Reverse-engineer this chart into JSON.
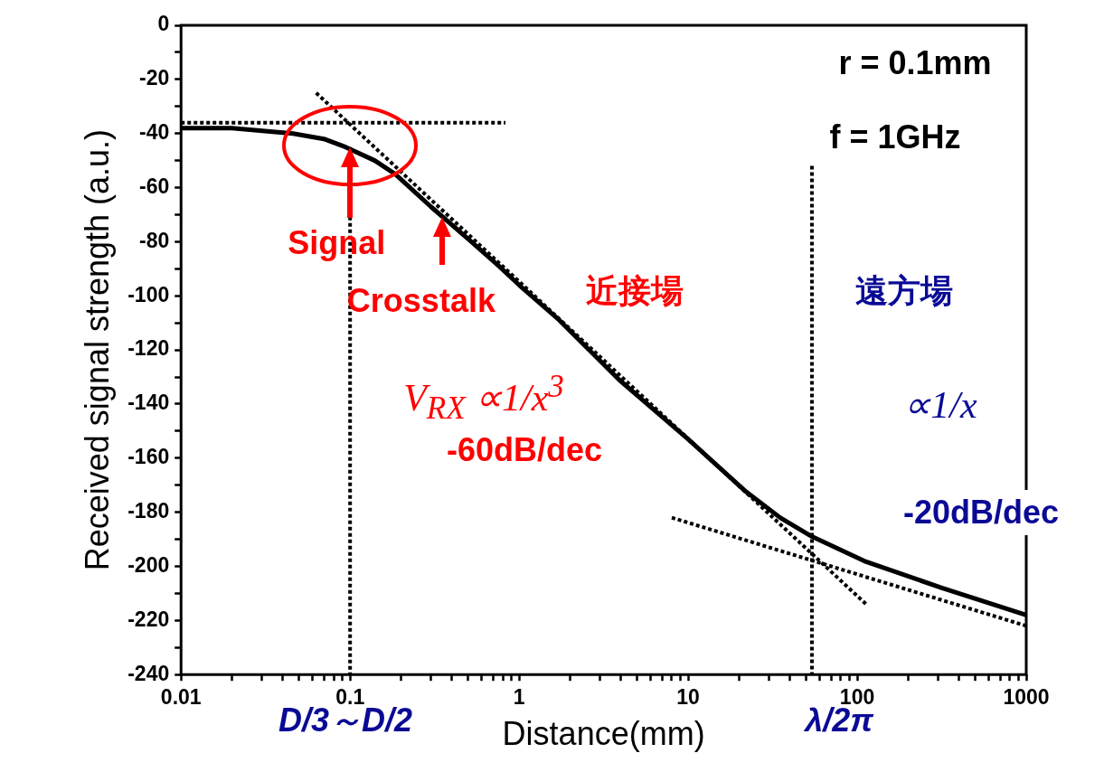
{
  "chart_data": {
    "type": "line",
    "xlabel": "Distance(mm)",
    "ylabel": "Received signal strength (a.u.)",
    "log": "x",
    "xlim": [
      0.01,
      1000
    ],
    "ylim": [
      -240,
      0
    ],
    "xticks": [
      0.01,
      {
        "value": 0.02,
        "label": null
      },
      {
        "value": 0.03,
        "label": null
      },
      {
        "value": 0.04,
        "label": null
      },
      {
        "value": 0.05,
        "label": null
      },
      {
        "value": 0.06,
        "label": null
      },
      {
        "value": 0.07,
        "label": null
      },
      {
        "value": 0.08,
        "label": null
      },
      {
        "value": 0.09,
        "label": null
      },
      0.1,
      {
        "value": 0.2,
        "label": null
      },
      {
        "value": 0.3,
        "label": null
      },
      {
        "value": 0.4,
        "label": null
      },
      {
        "value": 0.5,
        "label": null
      },
      {
        "value": 0.6,
        "label": null
      },
      {
        "value": 0.7,
        "label": null
      },
      {
        "value": 0.8,
        "label": null
      },
      {
        "value": 0.9,
        "label": null
      },
      1,
      {
        "value": 2,
        "label": null
      },
      {
        "value": 3,
        "label": null
      },
      {
        "value": 4,
        "label": null
      },
      {
        "value": 5,
        "label": null
      },
      {
        "value": 6,
        "label": null
      },
      {
        "value": 7,
        "label": null
      },
      {
        "value": 8,
        "label": null
      },
      {
        "value": 9,
        "label": null
      },
      10,
      {
        "value": 20,
        "label": null
      },
      {
        "value": 30,
        "label": null
      },
      {
        "value": 40,
        "label": null
      },
      {
        "value": 50,
        "label": null
      },
      {
        "value": 60,
        "label": null
      },
      {
        "value": 70,
        "label": null
      },
      {
        "value": 80,
        "label": null
      },
      {
        "value": 90,
        "label": null
      },
      100,
      {
        "value": 200,
        "label": null
      },
      {
        "value": 300,
        "label": null
      },
      {
        "value": 400,
        "label": null
      },
      {
        "value": 500,
        "label": null
      },
      {
        "value": 600,
        "label": null
      },
      {
        "value": 700,
        "label": null
      },
      {
        "value": 800,
        "label": null
      },
      {
        "value": 900,
        "label": null
      },
      1000
    ],
    "yticks": [
      -240,
      {
        "value": -230,
        "label": null
      },
      -220,
      {
        "value": -210,
        "label": null
      },
      -200,
      {
        "value": -190,
        "label": null
      },
      -180,
      {
        "value": -170,
        "label": null
      },
      -160,
      {
        "value": -150,
        "label": null
      },
      -140,
      {
        "value": -130,
        "label": null
      },
      -120,
      {
        "value": -110,
        "label": null
      },
      -100,
      {
        "value": -90,
        "label": null
      },
      -80,
      {
        "value": -70,
        "label": null
      },
      -60,
      {
        "value": -50,
        "label": null
      },
      -40,
      {
        "value": -30,
        "label": null
      },
      -20,
      {
        "value": -10,
        "label": null
      },
      0
    ],
    "grid": false,
    "legend": false,
    "marker": "none",
    "series": [
      {
        "color": "#000000",
        "line_style": "solid",
        "x": [
          0.01,
          0.02,
          0.046,
          0.07,
          0.094,
          0.14,
          0.185,
          0.3,
          0.5,
          0.76,
          1,
          1.73,
          3.9,
          10,
          21.6,
          35,
          54,
          110,
          317,
          1000
        ],
        "values": [
          -38,
          -38,
          -40,
          -42,
          -45,
          -50,
          -55,
          -67,
          -79,
          -89,
          -96,
          -109,
          -131,
          -153,
          -172,
          -182,
          -189,
          -198,
          -208,
          -218
        ]
      },
      {
        "color": "#000000",
        "line_style": "dotted",
        "x": [
          0.01,
          0.83
        ],
        "values": [
          -36,
          -36
        ]
      },
      {
        "color": "#000000",
        "line_style": "dotted",
        "x": [
          0.063,
          113
        ],
        "values": [
          -25,
          -214
        ]
      },
      {
        "color": "#000000",
        "line_style": "dotted",
        "x": [
          8,
          1000
        ],
        "values": [
          -182,
          -222
        ]
      },
      {
        "color": "#000000",
        "line_style": "dotted",
        "x": [
          0.1,
          0.1
        ],
        "values": [
          -45,
          -240
        ]
      },
      {
        "color": "#000000",
        "line_style": "dotted",
        "x": [
          54,
          54
        ],
        "values": [
          -52,
          -240
        ]
      }
    ],
    "annotations": [
      "r = 0.1mm",
      "f = 1GHz",
      {
        "text": "Signal",
        "x": 0.1,
        "y": -45
      },
      {
        "text": "Crosstalk",
        "x": 0.35,
        "y": -71
      },
      "近接場",
      "遠方場",
      "V$_{RX}$ ∝1/x$^{3}$",
      "-60dB/dec",
      "∝1/x",
      "-20dB/dec",
      "D/3～D/2",
      "λ/2π"
    ]
  }
}
